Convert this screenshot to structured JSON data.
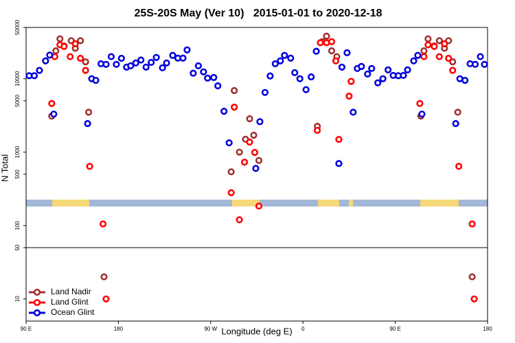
{
  "chart_data": {
    "type": "scatter",
    "title": "25S-20S May (Ver 10)   2015-01-01 to 2020-12-18",
    "x_label": "Longitude (deg E)",
    "y_label": "N Total",
    "xlim": [
      90,
      540
    ],
    "xticks": [
      {
        "value": 90,
        "label": "90 E"
      },
      180,
      {
        "value": 270,
        "label": "90 W"
      },
      {
        "value": 360,
        "label": "0"
      },
      {
        "value": 450,
        "label": "90 E"
      },
      {
        "value": 540,
        "label": "180"
      }
    ],
    "ylim": [
      5,
      50000
    ],
    "log_y": true,
    "yticks": [
      10,
      50,
      100,
      500,
      1000,
      5000,
      10000,
      50000
    ],
    "legend": "bottom left",
    "series": [
      {
        "name": "Land Nadir",
        "color": "#a03030",
        "x": [
          115,
          119,
          123,
          127,
          134,
          138,
          143,
          148,
          151,
          166,
          290,
          293,
          298,
          304,
          308,
          312,
          317,
          374,
          379,
          383,
          388,
          393,
          407,
          475,
          478,
          482,
          488,
          493,
          498,
          502,
          506,
          511,
          525
        ],
        "values": [
          3100,
          24000,
          35000,
          28000,
          33000,
          26000,
          33000,
          17000,
          3500,
          20,
          540,
          6900,
          1000,
          1500,
          2850,
          1700,
          770,
          2250,
          32000,
          38000,
          24000,
          20000,
          9200,
          3100,
          24000,
          35000,
          28000,
          33000,
          26000,
          33000,
          17000,
          3500,
          20
        ]
      },
      {
        "name": "Land Glint",
        "color": "#ff0000",
        "x": [
          115,
          118,
          123,
          127,
          133,
          138,
          143,
          148,
          152,
          165,
          168,
          290,
          293,
          298,
          303,
          308,
          313,
          317,
          374,
          377,
          383,
          388,
          392,
          395,
          405,
          407,
          474,
          478,
          482,
          488,
          493,
          498,
          502,
          506,
          512,
          525,
          527
        ],
        "values": [
          4600,
          20000,
          29000,
          27500,
          20000,
          30000,
          19000,
          13000,
          640,
          105,
          10,
          280,
          4100,
          120,
          730,
          1370,
          990,
          184,
          1980,
          31000,
          31000,
          32000,
          17500,
          1490,
          5800,
          9200,
          4600,
          20000,
          29000,
          27500,
          20000,
          30000,
          19000,
          13000,
          640,
          105,
          10
        ]
      },
      {
        "name": "Ocean Glint",
        "color": "#0000dd",
        "x": [
          93,
          98,
          103,
          109,
          113,
          117,
          150,
          154,
          158,
          163,
          168,
          173,
          178,
          183,
          188,
          192,
          197,
          202,
          207,
          212,
          217,
          223,
          227,
          233,
          238,
          243,
          247,
          253,
          258,
          263,
          267,
          273,
          277,
          283,
          288,
          314,
          318,
          323,
          328,
          333,
          338,
          342,
          348,
          352,
          357,
          363,
          368,
          373,
          395,
          398,
          403,
          409,
          413,
          417,
          423,
          427,
          433,
          438,
          443,
          448,
          453,
          458,
          462,
          468,
          472,
          476,
          509,
          513,
          518,
          523,
          528,
          533,
          537
        ],
        "values": [
          11000,
          11000,
          13000,
          17500,
          21000,
          3300,
          2450,
          10000,
          9500,
          16000,
          15700,
          20000,
          15700,
          19000,
          14400,
          15000,
          16400,
          18000,
          14400,
          16700,
          19500,
          14100,
          16400,
          20800,
          19100,
          19100,
          24700,
          11900,
          15000,
          12400,
          10200,
          10400,
          8000,
          3600,
          1340,
          600,
          2600,
          6500,
          10900,
          16000,
          17500,
          20800,
          19100,
          12100,
          10000,
          7100,
          10600,
          23700,
          700,
          14400,
          22600,
          3500,
          13800,
          14700,
          11600,
          13800,
          8800,
          10000,
          13200,
          11100,
          11000,
          11100,
          13200,
          17500,
          20800,
          3300,
          2450,
          10000,
          9500,
          16000,
          15700,
          20000,
          15700
        ]
      }
    ]
  }
}
